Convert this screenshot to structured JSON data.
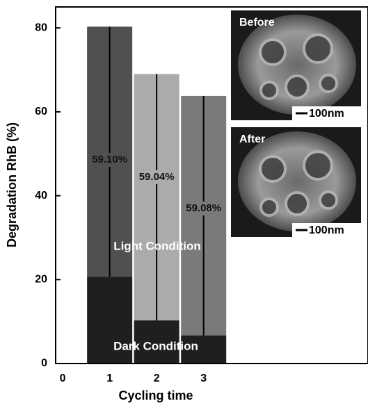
{
  "chart_data": {
    "type": "bar",
    "stacked": true,
    "xlabel": "Cycling time",
    "ylabel": "Degradation RhB (%)",
    "x": [
      1,
      2,
      3
    ],
    "xlim": [
      -0.15,
      6.5
    ],
    "xticks": [
      0,
      1,
      2,
      3
    ],
    "ylim": [
      0,
      85
    ],
    "yticks": [
      0,
      20,
      40,
      60,
      80
    ],
    "series": [
      {
        "name": "Dark Condition",
        "colors": [
          "#1f1f1f",
          "#1f1f1f",
          "#1f1f1f"
        ],
        "values": [
          20.7,
          10.3,
          6.7
        ]
      },
      {
        "name": "Light Condition",
        "colors": [
          "#505050",
          "#ababab",
          "#7a7a7a"
        ],
        "values": [
          59.6,
          58.7,
          57.1
        ]
      }
    ],
    "annotations": [
      "59.10%",
      "59.04%",
      "59.08%"
    ],
    "insets": [
      {
        "label": "Before",
        "scale": "100nm"
      },
      {
        "label": "After",
        "scale": "100nm"
      }
    ]
  }
}
